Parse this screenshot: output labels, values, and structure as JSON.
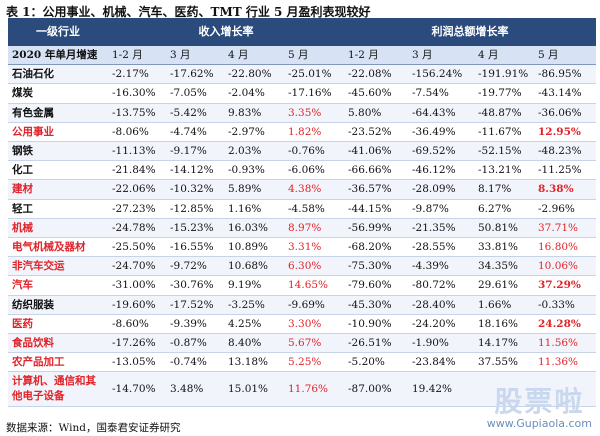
{
  "title": "表 1：公用事业、机械、汽车、医药、TMT 行业 5 月盈利表现较好",
  "header": {
    "industry": "一级行业",
    "revenue_group": "收入增长率",
    "profit_group": "利润总额增长率"
  },
  "subheader": {
    "label": "2020 年单月增速",
    "months": [
      "1-2 月",
      "3 月",
      "4 月",
      "5 月",
      "1-2 月",
      "3 月",
      "4 月",
      "5 月"
    ]
  },
  "rows": [
    {
      "name": "石油石化",
      "cells": [
        "-2.17%",
        "-17.62%",
        "-22.80%",
        "-25.01%",
        "-22.08%",
        "-156.24%",
        "-191.91%",
        "-86.95%"
      ]
    },
    {
      "name": "煤炭",
      "cells": [
        "-16.30%",
        "-7.05%",
        "-2.04%",
        "-17.16%",
        "-45.60%",
        "-7.54%",
        "-19.77%",
        "-43.14%"
      ]
    },
    {
      "name": "有色金属",
      "cells": [
        "-13.75%",
        "-5.42%",
        "9.83%",
        "3.35%",
        "5.80%",
        "-64.43%",
        "-48.87%",
        "-36.06%"
      ]
    },
    {
      "name": "公用事业",
      "cells": [
        "-8.06%",
        "-4.74%",
        "-2.97%",
        "1.82%",
        "-23.52%",
        "-36.49%",
        "-11.67%",
        "12.95%"
      ]
    },
    {
      "name": "钢铁",
      "cells": [
        "-11.13%",
        "-9.17%",
        "2.03%",
        "-0.76%",
        "-41.06%",
        "-69.52%",
        "-52.15%",
        "-48.23%"
      ]
    },
    {
      "name": "化工",
      "cells": [
        "-21.84%",
        "-14.12%",
        "-0.93%",
        "-6.06%",
        "-66.66%",
        "-46.12%",
        "-13.21%",
        "-11.25%"
      ]
    },
    {
      "name": "建材",
      "cells": [
        "-22.06%",
        "-10.32%",
        "5.89%",
        "4.38%",
        "-36.57%",
        "-28.09%",
        "8.17%",
        "8.38%"
      ]
    },
    {
      "name": "轻工",
      "cells": [
        "-27.23%",
        "-12.85%",
        "1.16%",
        "-4.58%",
        "-44.15%",
        "-9.87%",
        "6.27%",
        "-2.96%"
      ]
    },
    {
      "name": "机械",
      "cells": [
        "-24.78%",
        "-15.23%",
        "16.03%",
        "8.97%",
        "-56.99%",
        "-21.35%",
        "50.81%",
        "37.71%"
      ]
    },
    {
      "name": "电气机械及器材",
      "cells": [
        "-25.50%",
        "-16.55%",
        "10.89%",
        "3.31%",
        "-68.20%",
        "-28.55%",
        "33.81%",
        "16.80%"
      ]
    },
    {
      "name": "非汽车交运",
      "cells": [
        "-24.70%",
        "-9.72%",
        "10.68%",
        "6.30%",
        "-75.30%",
        "-4.39%",
        "34.35%",
        "10.06%"
      ]
    },
    {
      "name": "汽车",
      "cells": [
        "-31.00%",
        "-30.76%",
        "9.19%",
        "14.65%",
        "-79.60%",
        "-80.72%",
        "29.61%",
        "37.29%"
      ]
    },
    {
      "name": "纺织服装",
      "cells": [
        "-19.60%",
        "-17.52%",
        "-3.25%",
        "-9.69%",
        "-45.30%",
        "-28.40%",
        "1.66%",
        "-0.33%"
      ]
    },
    {
      "name": "医药",
      "cells": [
        "-8.60%",
        "-9.39%",
        "4.25%",
        "3.30%",
        "-10.90%",
        "-24.20%",
        "18.16%",
        "24.28%"
      ]
    },
    {
      "name": "食品饮料",
      "cells": [
        "-17.26%",
        "-0.87%",
        "8.40%",
        "5.67%",
        "-26.51%",
        "-1.90%",
        "14.17%",
        "11.56%"
      ]
    },
    {
      "name": "农产品加工",
      "cells": [
        "-13.05%",
        "-0.74%",
        "13.18%",
        "5.25%",
        "-5.20%",
        "-23.84%",
        "37.55%",
        "11.36%"
      ]
    },
    {
      "name": "计算机、通信和其他电子设备",
      "cells": [
        "-14.70%",
        "3.48%",
        "15.01%",
        "11.76%",
        "-87.00%",
        "19.42%",
        "",
        ""
      ]
    }
  ],
  "footer": "数据来源：Wind，国泰君安证券研究",
  "watermark": {
    "text": "股票啦",
    "url": "www.Gupiaola.com"
  },
  "colors": {
    "header_bg": "#2b4b7c",
    "subheader_bg": "#d7e3f5",
    "highlight_red": "#e0242a"
  }
}
